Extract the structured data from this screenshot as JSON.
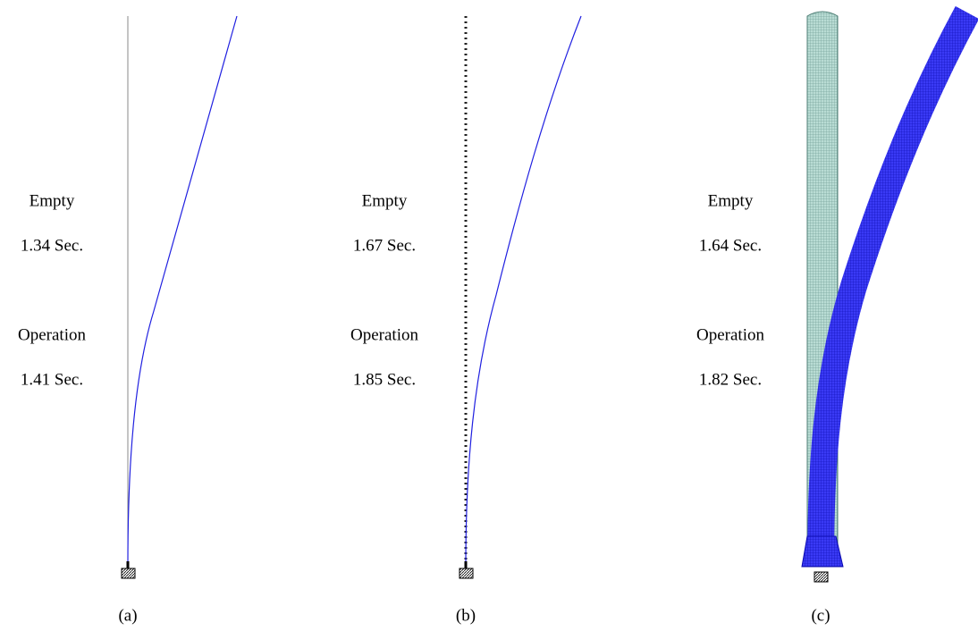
{
  "panels": [
    {
      "empty_label": "Empty",
      "empty_period": "1.34 Sec.",
      "operation_label": "Operation",
      "operation_period": "1.41 Sec.",
      "caption": "(a)"
    },
    {
      "empty_label": "Empty",
      "empty_period": "1.67 Sec.",
      "operation_label": "Operation",
      "operation_period": "1.85 Sec.",
      "caption": "(b)"
    },
    {
      "empty_label": "Empty",
      "empty_period": "1.64 Sec.",
      "operation_label": "Operation",
      "operation_period": "1.82 Sec.",
      "caption": "(c)"
    }
  ]
}
